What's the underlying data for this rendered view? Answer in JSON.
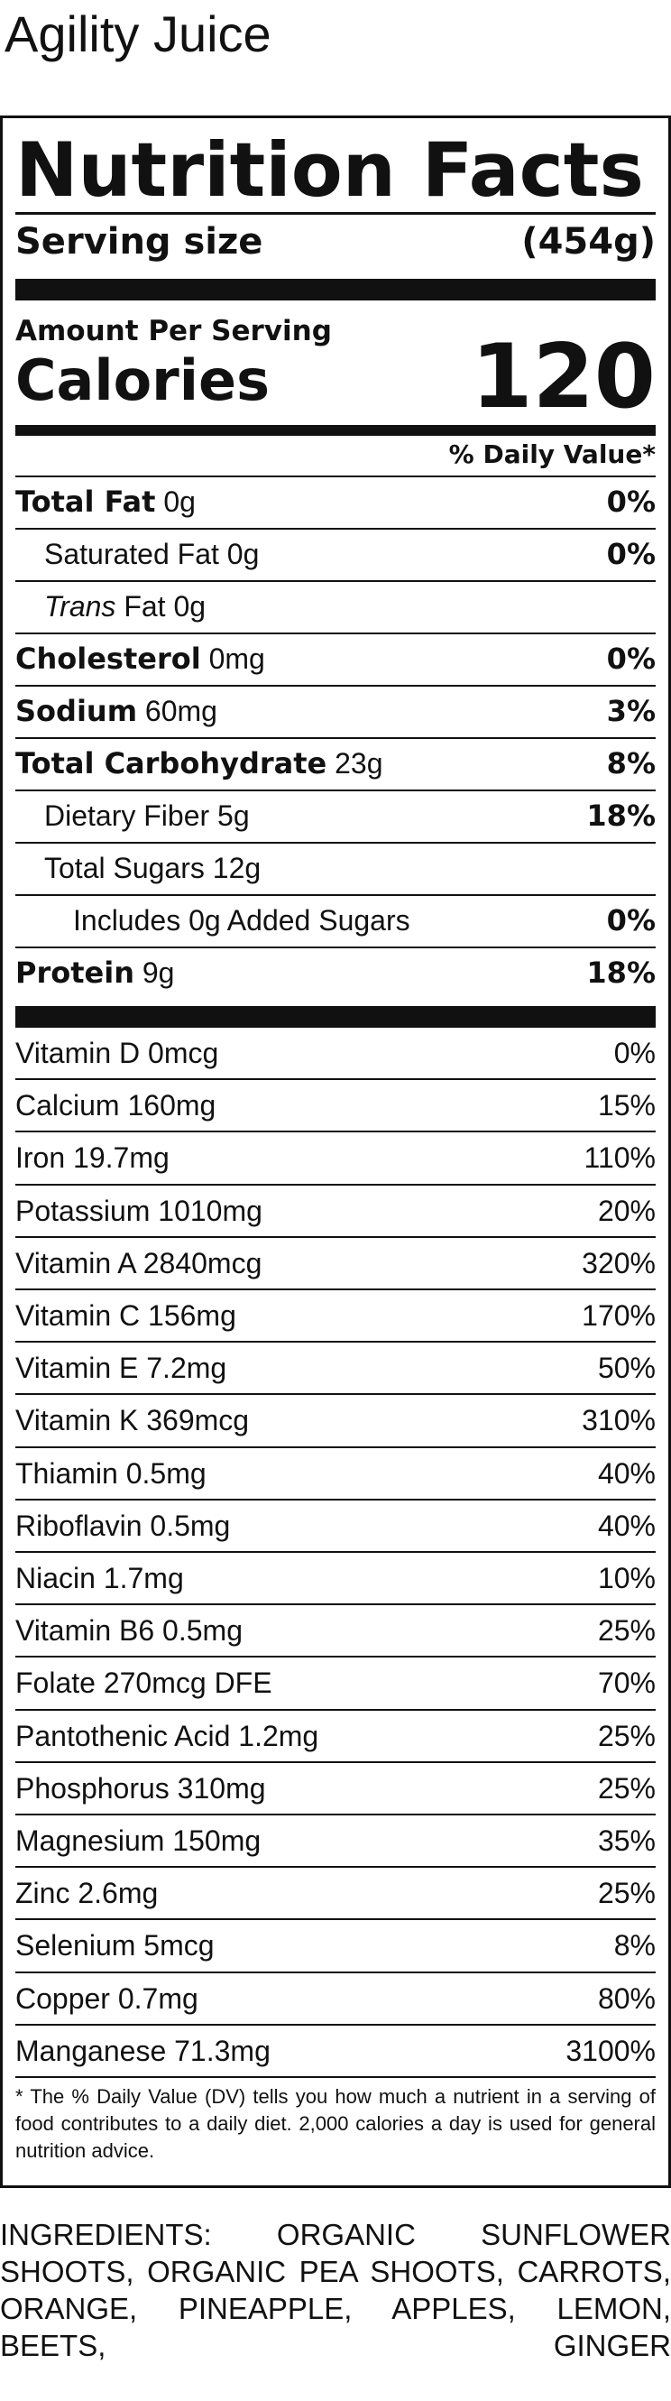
{
  "product_name": "Agility Juice",
  "panel": {
    "title": "Nutrition Facts",
    "serving_size_label": "Serving size",
    "serving_size_value": "(454g)",
    "amount_per_serving": "Amount Per Serving",
    "calories_label": "Calories",
    "calories_value": "120",
    "daily_value_header": "% Daily Value*"
  },
  "macros": [
    {
      "bold": "Total Fat",
      "name": "0g",
      "dv": "0%"
    },
    {
      "bold": "",
      "name": "Saturated Fat 0g",
      "dv": "0%"
    },
    {
      "italic": "Trans",
      "name": "Fat 0g",
      "dv": ""
    },
    {
      "bold": "Cholesterol",
      "name": "0mg",
      "dv": "0%"
    },
    {
      "bold": "Sodium",
      "name": "60mg",
      "dv": "3%"
    },
    {
      "bold": "Total Carbohydrate",
      "name": "23g",
      "dv": "8%"
    },
    {
      "bold": "",
      "name": "Dietary Fiber 5g",
      "dv": "18%"
    },
    {
      "bold": "",
      "name": "Total Sugars 12g",
      "dv": ""
    },
    {
      "bold": "",
      "name": "Includes 0g Added Sugars",
      "dv": "0%"
    },
    {
      "bold": "Protein",
      "name": "9g",
      "dv": "18%"
    }
  ],
  "micros": [
    {
      "name": "Vitamin D 0mcg",
      "dv": "0%"
    },
    {
      "name": "Calcium 160mg",
      "dv": "15%"
    },
    {
      "name": "Iron 19.7mg",
      "dv": "110%"
    },
    {
      "name": "Potassium 1010mg",
      "dv": "20%"
    },
    {
      "name": "Vitamin A 2840mcg",
      "dv": "320%"
    },
    {
      "name": "Vitamin C 156mg",
      "dv": "170%"
    },
    {
      "name": "Vitamin E 7.2mg",
      "dv": "50%"
    },
    {
      "name": "Vitamin K 369mcg",
      "dv": "310%"
    },
    {
      "name": "Thiamin 0.5mg",
      "dv": "40%"
    },
    {
      "name": "Riboflavin 0.5mg",
      "dv": "40%"
    },
    {
      "name": "Niacin 1.7mg",
      "dv": "10%"
    },
    {
      "name": "Vitamin B6 0.5mg",
      "dv": "25%"
    },
    {
      "name": "Folate 270mcg DFE",
      "dv": "70%"
    },
    {
      "name": "Pantothenic Acid 1.2mg",
      "dv": "25%"
    },
    {
      "name": "Phosphorus 310mg",
      "dv": "25%"
    },
    {
      "name": "Magnesium 150mg",
      "dv": "35%"
    },
    {
      "name": "Zinc 2.6mg",
      "dv": "25%"
    },
    {
      "name": "Selenium 5mcg",
      "dv": "8%"
    },
    {
      "name": "Copper 0.7mg",
      "dv": "80%"
    },
    {
      "name": "Manganese 71.3mg",
      "dv": "3100%"
    }
  ],
  "footnote": "* The % Daily Value (DV) tells you how much a nutrient in a serving of food contributes to a daily diet. 2,000 calories a day is used for general nutrition advice.",
  "ingredients": "INGREDIENTS: ORGANIC SUNFLOWER SHOOTS, ORGANIC PEA SHOOTS, CARROTS, ORANGE, PINEAPPLE, APPLES, LEMON, BEETS, GINGER"
}
